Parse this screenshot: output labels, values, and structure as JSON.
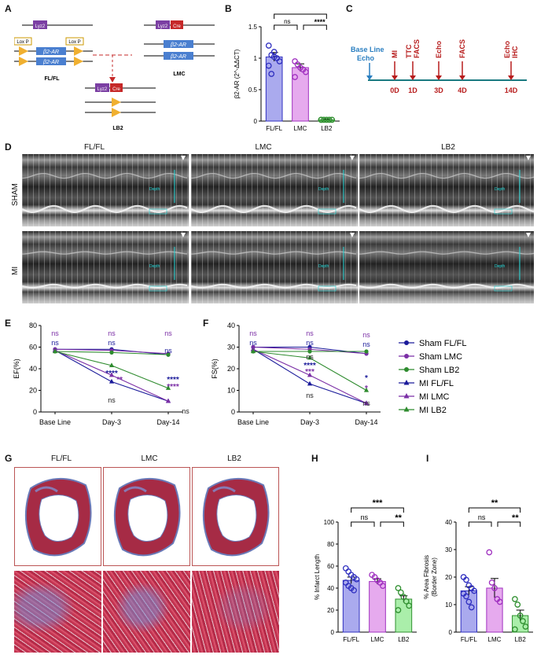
{
  "panels": {
    "A": "A",
    "B": "B",
    "C": "C",
    "D": "D",
    "E": "E",
    "F": "F",
    "G": "G",
    "H": "H",
    "I": "I"
  },
  "panelA": {
    "lyz2": "Lyz2",
    "cre": "Cre",
    "loxp": "Lox P",
    "b2ar": "β2-AR",
    "flfl": "FL/FL",
    "lmc": "LMC",
    "lb2": "LB2"
  },
  "panelB": {
    "ylabel": "β2-AR (2^-ΔΔCT)",
    "sig_top": "****",
    "sig_right": "****",
    "sig_ns": "ns"
  },
  "panelC": {
    "baseline": "Base Line",
    "echo": "Echo",
    "events": [
      {
        "day": "0D",
        "label": "MI"
      },
      {
        "day": "1D",
        "label": "TTC FACS"
      },
      {
        "day": "3D",
        "label": "Echo"
      },
      {
        "day": "4D",
        "label": "FACS"
      },
      {
        "day": "14D",
        "label": "Echo IHC"
      }
    ]
  },
  "panelD": {
    "cols": [
      "FL/FL",
      "LMC",
      "LB2"
    ],
    "rows": [
      "SHAM",
      "MI"
    ],
    "depth": "Depth"
  },
  "panelG": {
    "cols": [
      "FL/FL",
      "LMC",
      "LB2"
    ]
  },
  "legend": [
    "Sham FL/FL",
    "Sham LMC",
    "Sham LB2",
    "MI FL/FL",
    "MI LMC",
    "MI LB2"
  ],
  "chart_data": [
    {
      "id": "B",
      "type": "bar",
      "title": "",
      "categories": [
        "FL/FL",
        "LMC",
        "LB2"
      ],
      "values": [
        1.02,
        0.85,
        0.02
      ],
      "errors": [
        0.07,
        0.06,
        0.01
      ],
      "ylabel": "β2-AR (2^-ΔΔCT)",
      "ylim": [
        0,
        1.5
      ],
      "yticks": [
        0,
        0.5,
        1.0,
        1.5
      ],
      "colors": [
        "#aaaaee",
        "#e6aaee",
        "#66cc66"
      ],
      "points": [
        [
          1.2,
          1.05,
          1.02,
          1.0,
          0.95,
          0.88,
          0.75,
          1.1
        ],
        [
          0.95,
          0.9,
          0.85,
          0.82,
          0.78,
          0.7
        ],
        [
          0.02,
          0.02,
          0.02,
          0.02,
          0.02,
          0.02
        ]
      ]
    },
    {
      "id": "E",
      "type": "line",
      "xlabel": "",
      "ylabel": "EF(%)",
      "categories": [
        "Base Line",
        "Day-3",
        "Day-14"
      ],
      "ylim": [
        0,
        80
      ],
      "yticks": [
        0,
        20,
        40,
        60,
        80
      ],
      "series": [
        {
          "name": "Sham FL/FL",
          "values": [
            58,
            58,
            53
          ]
        },
        {
          "name": "Sham LMC",
          "values": [
            58,
            57,
            54
          ]
        },
        {
          "name": "Sham LB2",
          "values": [
            56,
            55,
            53
          ]
        },
        {
          "name": "MI FL/FL",
          "values": [
            57,
            28,
            10
          ]
        },
        {
          "name": "MI LMC",
          "values": [
            57,
            34,
            10
          ]
        },
        {
          "name": "MI LB2",
          "values": [
            56,
            43,
            22
          ]
        }
      ],
      "annotations": [
        "ns",
        "ns",
        "ns",
        "ns",
        "ns",
        "ns",
        "****",
        "**",
        "****",
        "****",
        "ns",
        "ns"
      ]
    },
    {
      "id": "F",
      "type": "line",
      "xlabel": "",
      "ylabel": "FS(%)",
      "categories": [
        "Base Line",
        "Day-3",
        "Day-14"
      ],
      "ylim": [
        0,
        40
      ],
      "yticks": [
        0,
        10,
        20,
        30,
        40
      ],
      "series": [
        {
          "name": "Sham FL/FL",
          "values": [
            30,
            30,
            27
          ]
        },
        {
          "name": "Sham LMC",
          "values": [
            30,
            29,
            27
          ]
        },
        {
          "name": "Sham LB2",
          "values": [
            28,
            28,
            28
          ]
        },
        {
          "name": "MI FL/FL",
          "values": [
            29,
            13,
            4
          ]
        },
        {
          "name": "MI LMC",
          "values": [
            29,
            17,
            4
          ]
        },
        {
          "name": "MI LB2",
          "values": [
            28,
            25,
            10
          ]
        }
      ],
      "annotations": [
        "ns",
        "ns",
        "ns",
        "ns",
        "ns",
        "ns",
        "ns",
        "****",
        "***",
        "ns",
        "*",
        "*",
        "ns"
      ]
    },
    {
      "id": "H",
      "type": "bar",
      "categories": [
        "FL/FL",
        "LMC",
        "LB2"
      ],
      "values": [
        47,
        46,
        30
      ],
      "errors": [
        3,
        2.5,
        3
      ],
      "ylabel": "% Infarct Length",
      "ylim": [
        0,
        100
      ],
      "yticks": [
        0,
        20,
        40,
        60,
        80,
        100
      ],
      "colors": [
        "#aaaaee",
        "#e6aaee",
        "#aaeeaa"
      ],
      "points": [
        [
          58,
          55,
          52,
          50,
          48,
          45,
          42,
          40,
          38
        ],
        [
          52,
          50,
          47,
          45,
          42
        ],
        [
          40,
          36,
          32,
          28,
          24,
          20
        ]
      ],
      "sig": [
        "***",
        "ns",
        "**"
      ]
    },
    {
      "id": "I",
      "type": "bar",
      "categories": [
        "FL/FL",
        "LMC",
        "LB2"
      ],
      "values": [
        15,
        16,
        6
      ],
      "errors": [
        1.5,
        3.5,
        2
      ],
      "ylabel": "% Area Fibrosis (Border Zone)",
      "ylim": [
        0,
        40
      ],
      "yticks": [
        0,
        10,
        20,
        30,
        40
      ],
      "colors": [
        "#aaaaee",
        "#e6aaee",
        "#aaeeaa"
      ],
      "points": [
        [
          20,
          19,
          17,
          16,
          15,
          14,
          13,
          11,
          9
        ],
        [
          29,
          18,
          16,
          12,
          11
        ],
        [
          12,
          10,
          6,
          4,
          2,
          1
        ]
      ],
      "sig": [
        "**",
        "ns",
        "**"
      ]
    }
  ]
}
